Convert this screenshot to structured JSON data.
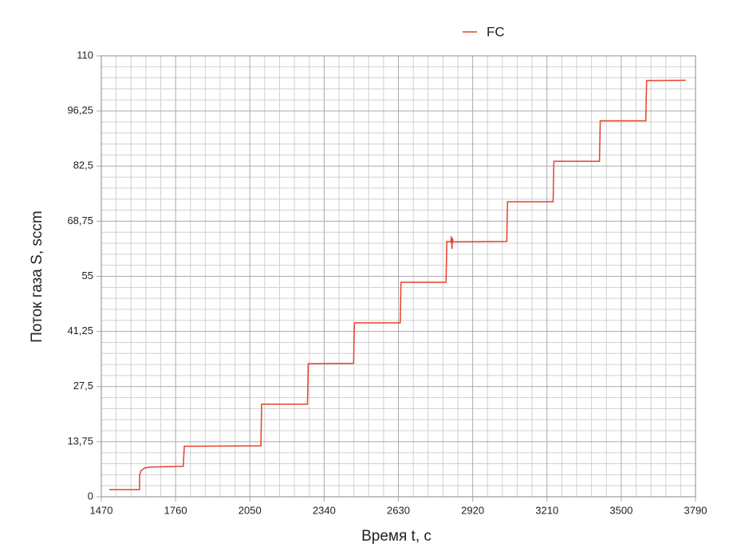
{
  "chart_data": {
    "type": "line",
    "xlabel": "Время t, с",
    "ylabel": "Поток газа S, sccm",
    "xlim": [
      1470,
      3790
    ],
    "xticks": [
      1470,
      1760,
      2050,
      2340,
      2630,
      2920,
      3210,
      3500,
      3790
    ],
    "ylim": [
      0,
      110
    ],
    "yticks": [
      0,
      {
        "value": 13.75,
        "label": "13,75"
      },
      {
        "value": 27.5,
        "label": "27,5"
      },
      {
        "value": 41.25,
        "label": "41,25"
      },
      55,
      {
        "value": 68.75,
        "label": "68,75"
      },
      {
        "value": 82.5,
        "label": "82,5"
      },
      {
        "value": 96.25,
        "label": "96,25"
      },
      110
    ],
    "grid": true,
    "minor_divisions": 5,
    "legend": "top",
    "series": [
      {
        "name": "FC",
        "color": "#e8402a",
        "x": [
          1501,
          1619,
          1620,
          1625,
          1640,
          1660,
          1790,
          1794,
          2093,
          2096,
          2275,
          2278,
          2455,
          2458,
          2637,
          2640,
          2816,
          2819,
          2835,
          2837,
          2839,
          2841,
          2843,
          3053,
          3056,
          3234,
          3237,
          3415,
          3418,
          3596,
          3599,
          3752
        ],
        "values": [
          1.8,
          1.8,
          5.5,
          6.5,
          7.2,
          7.4,
          7.6,
          12.6,
          12.7,
          23.1,
          23.1,
          33.2,
          33.3,
          43.4,
          43.4,
          53.5,
          53.5,
          63.7,
          63.6,
          65.0,
          61.8,
          64.5,
          63.6,
          63.7,
          73.6,
          73.6,
          83.7,
          83.7,
          93.8,
          93.8,
          103.8,
          103.9
        ]
      }
    ]
  }
}
